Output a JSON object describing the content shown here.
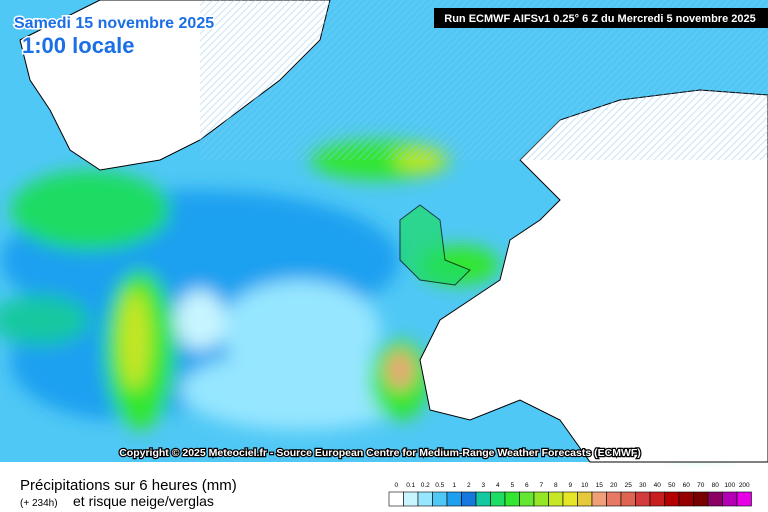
{
  "header": {
    "date": "Samedi 15 novembre 2025",
    "time": "1:00 locale",
    "run": "Run ECMWF AIFSv1 0.25° 6 Z du Mercredi 5 novembre 2025"
  },
  "copyright": "Copyright © 2025 Meteociel.fr - Source European Centre for Medium-Range Weather Forecasts (ECMWF)",
  "footer": {
    "title": "Précipitations sur 6 heures (mm)",
    "offset": "(+ 234h)",
    "subtitle": "et risque neige/verglas"
  },
  "legend": {
    "labels": [
      "0",
      "0.1",
      "0.2",
      "0.5",
      "1",
      "2",
      "3",
      "4",
      "5",
      "6",
      "7",
      "8",
      "9",
      "10",
      "15",
      "20",
      "25",
      "30",
      "40",
      "50",
      "60",
      "70",
      "80",
      "100",
      "200"
    ],
    "colors": [
      "#ffffff",
      "#c8f5ff",
      "#96e6ff",
      "#50c8f5",
      "#1ea0f0",
      "#1478dc",
      "#14c8a0",
      "#1edc64",
      "#32e632",
      "#64e632",
      "#96e628",
      "#c8e628",
      "#e6e628",
      "#e6c83c",
      "#f0a078",
      "#e67864",
      "#dc6450",
      "#d23c3c",
      "#c81e1e",
      "#b40000",
      "#960000",
      "#780000",
      "#8c0064",
      "#b400b4",
      "#e600e6"
    ]
  }
}
